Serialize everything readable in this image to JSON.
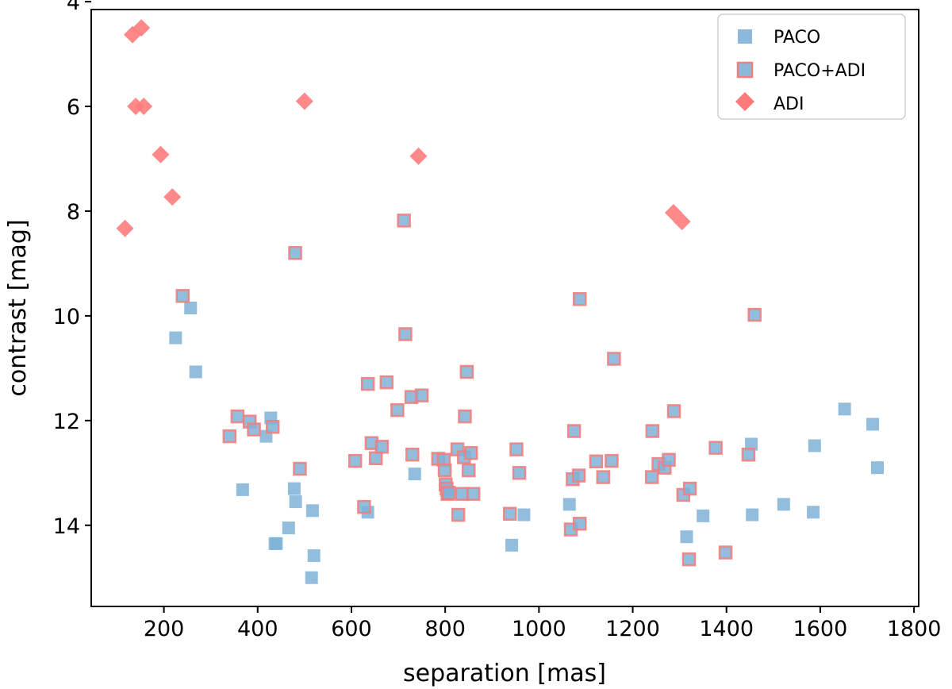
{
  "chart_data": {
    "type": "scatter",
    "xlabel": "separation [mas]",
    "ylabel": "contrast [mag]",
    "xlim": [
      45,
      1810
    ],
    "ylim": [
      15.55,
      4.15
    ],
    "y_inverted": true,
    "xticks": [
      200,
      400,
      600,
      800,
      1000,
      1200,
      1400,
      1600,
      1800
    ],
    "yticks": [
      4,
      6,
      8,
      10,
      12,
      14
    ],
    "grid": false,
    "legend_position": "top-right",
    "colors": {
      "paco": "#7fb1d7",
      "paco_adi_edge": "#f08080",
      "adi": "#ff7b7b"
    },
    "series": [
      {
        "name": "PACO",
        "marker": "square",
        "points": [
          [
            225,
            10.42
          ],
          [
            257,
            9.85
          ],
          [
            268,
            11.07
          ],
          [
            368,
            13.32
          ],
          [
            418,
            12.3
          ],
          [
            428,
            11.95
          ],
          [
            437,
            14.35
          ],
          [
            440,
            14.35
          ],
          [
            466,
            14.05
          ],
          [
            478,
            13.3
          ],
          [
            481,
            13.55
          ],
          [
            517,
            13.72
          ],
          [
            515,
            15.0
          ],
          [
            520,
            14.58
          ],
          [
            635,
            13.75
          ],
          [
            735,
            13.02
          ],
          [
            942,
            14.38
          ],
          [
            968,
            13.8
          ],
          [
            1065,
            13.6
          ],
          [
            1315,
            14.22
          ],
          [
            1350,
            13.82
          ],
          [
            1453,
            12.45
          ],
          [
            1455,
            13.8
          ],
          [
            1522,
            13.6
          ],
          [
            1588,
            12.48
          ],
          [
            1585,
            13.75
          ],
          [
            1652,
            11.78
          ],
          [
            1712,
            12.07
          ],
          [
            1722,
            12.9
          ]
        ]
      },
      {
        "name": "PACO+ADI",
        "marker": "square",
        "points": [
          [
            240,
            9.62
          ],
          [
            340,
            12.3
          ],
          [
            357,
            11.92
          ],
          [
            383,
            12.02
          ],
          [
            392,
            12.17
          ],
          [
            432,
            12.12
          ],
          [
            480,
            8.8
          ],
          [
            490,
            12.92
          ],
          [
            608,
            12.77
          ],
          [
            627,
            13.65
          ],
          [
            635,
            11.3
          ],
          [
            643,
            12.43
          ],
          [
            652,
            12.72
          ],
          [
            665,
            12.5
          ],
          [
            675,
            11.27
          ],
          [
            698,
            11.8
          ],
          [
            712,
            8.18
          ],
          [
            715,
            10.35
          ],
          [
            728,
            11.55
          ],
          [
            730,
            12.65
          ],
          [
            750,
            11.52
          ],
          [
            785,
            12.73
          ],
          [
            797,
            12.75
          ],
          [
            799,
            12.95
          ],
          [
            801,
            13.22
          ],
          [
            803,
            13.3
          ],
          [
            805,
            13.4
          ],
          [
            808,
            13.38
          ],
          [
            826,
            12.55
          ],
          [
            828,
            13.8
          ],
          [
            836,
            13.4
          ],
          [
            840,
            12.7
          ],
          [
            842,
            11.92
          ],
          [
            846,
            11.07
          ],
          [
            850,
            12.95
          ],
          [
            855,
            12.62
          ],
          [
            860,
            13.4
          ],
          [
            938,
            13.78
          ],
          [
            952,
            12.55
          ],
          [
            958,
            13.0
          ],
          [
            1068,
            14.08
          ],
          [
            1072,
            13.12
          ],
          [
            1075,
            12.2
          ],
          [
            1085,
            13.05
          ],
          [
            1087,
            13.97
          ],
          [
            1087,
            9.68
          ],
          [
            1122,
            12.78
          ],
          [
            1137,
            13.08
          ],
          [
            1155,
            12.77
          ],
          [
            1160,
            10.82
          ],
          [
            1241,
            13.08
          ],
          [
            1242,
            12.2
          ],
          [
            1255,
            12.83
          ],
          [
            1268,
            12.9
          ],
          [
            1277,
            12.75
          ],
          [
            1288,
            11.82
          ],
          [
            1308,
            13.42
          ],
          [
            1322,
            13.3
          ],
          [
            1320,
            14.65
          ],
          [
            1377,
            12.52
          ],
          [
            1398,
            14.52
          ],
          [
            1447,
            12.65
          ],
          [
            1460,
            9.98
          ]
        ]
      },
      {
        "name": "ADI",
        "marker": "diamond",
        "points": [
          [
            117,
            8.33
          ],
          [
            133,
            4.63
          ],
          [
            140,
            6.0
          ],
          [
            152,
            4.5
          ],
          [
            157,
            6.0
          ],
          [
            193,
            6.92
          ],
          [
            218,
            7.73
          ],
          [
            500,
            5.9
          ],
          [
            743,
            6.95
          ],
          [
            1287,
            8.03
          ],
          [
            1305,
            8.2
          ]
        ]
      }
    ]
  }
}
